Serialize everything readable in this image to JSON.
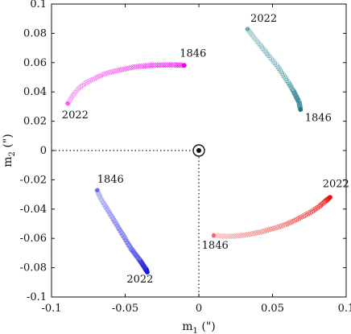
{
  "chart_data": {
    "type": "scatter",
    "title": "",
    "xlabel": "m",
    "xlabel_sub": "1",
    "xlabel_unit": " (\")",
    "ylabel": "m",
    "ylabel_sub": "2",
    "ylabel_unit": " (\")",
    "xlim": [
      -0.1,
      0.1
    ],
    "ylim": [
      -0.1,
      0.1
    ],
    "xticks": [
      -0.1,
      -0.05,
      0,
      0.05,
      0.1
    ],
    "xtick_labels": [
      "-0.1",
      "-0.05",
      "0",
      "0.05",
      "0.1"
    ],
    "yticks": [
      -0.1,
      -0.08,
      -0.06,
      -0.04,
      -0.02,
      0,
      0.02,
      0.04,
      0.06,
      0.08,
      0.1
    ],
    "ytick_labels": [
      "-0.1",
      "-0.08",
      "-0.06",
      "-0.04",
      "-0.02",
      "0",
      "0.02",
      "0.04",
      "0.06",
      "0.08",
      "0.1"
    ],
    "grid": false,
    "origin_marker": {
      "x": 0,
      "y": 0,
      "symbol": "circled-dot"
    },
    "series": [
      {
        "color": "#ee00ee",
        "x": [
          -0.089,
          -0.086,
          -0.082,
          -0.077,
          -0.071,
          -0.065,
          -0.058,
          -0.051,
          -0.044,
          -0.037,
          -0.03,
          -0.023,
          -0.016,
          -0.01
        ],
        "y": [
          0.032,
          0.037,
          0.042,
          0.046,
          0.049,
          0.052,
          0.054,
          0.0555,
          0.057,
          0.0578,
          0.0582,
          0.0584,
          0.0584,
          0.0581
        ]
      },
      {
        "color": "#1a7a86",
        "x": [
          0.033,
          0.036,
          0.04,
          0.044,
          0.048,
          0.053,
          0.057,
          0.061,
          0.064,
          0.066,
          0.068,
          0.069
        ],
        "y": [
          0.083,
          0.079,
          0.074,
          0.069,
          0.064,
          0.058,
          0.052,
          0.046,
          0.041,
          0.037,
          0.033,
          0.028
        ]
      },
      {
        "color": "#1a1adc",
        "x": [
          -0.069,
          -0.067,
          -0.064,
          -0.061,
          -0.058,
          -0.055,
          -0.052,
          -0.049,
          -0.046,
          -0.043,
          -0.04,
          -0.038,
          -0.036,
          -0.035
        ],
        "y": [
          -0.027,
          -0.032,
          -0.037,
          -0.042,
          -0.047,
          -0.052,
          -0.057,
          -0.062,
          -0.067,
          -0.071,
          -0.075,
          -0.078,
          -0.081,
          -0.083
        ]
      },
      {
        "color": "#ee1111",
        "x": [
          0.01,
          0.017,
          0.024,
          0.031,
          0.038,
          0.045,
          0.052,
          0.059,
          0.065,
          0.071,
          0.077,
          0.082,
          0.086,
          0.089
        ],
        "y": [
          -0.058,
          -0.0585,
          -0.0585,
          -0.0578,
          -0.0565,
          -0.0548,
          -0.0528,
          -0.0505,
          -0.0478,
          -0.0448,
          -0.0415,
          -0.038,
          -0.0345,
          -0.032
        ]
      }
    ],
    "annotations": [
      {
        "text": "1846",
        "x": -0.013,
        "y": 0.064
      },
      {
        "text": "2022",
        "x": -0.093,
        "y": 0.022
      },
      {
        "text": "2022",
        "x": 0.035,
        "y": 0.088
      },
      {
        "text": "1846",
        "x": 0.072,
        "y": 0.02
      },
      {
        "text": "1846",
        "x": -0.069,
        "y": -0.022
      },
      {
        "text": "2022",
        "x": -0.049,
        "y": -0.09
      },
      {
        "text": "2022",
        "x": 0.084,
        "y": -0.025
      },
      {
        "text": "1846",
        "x": 0.002,
        "y": -0.067
      }
    ]
  }
}
